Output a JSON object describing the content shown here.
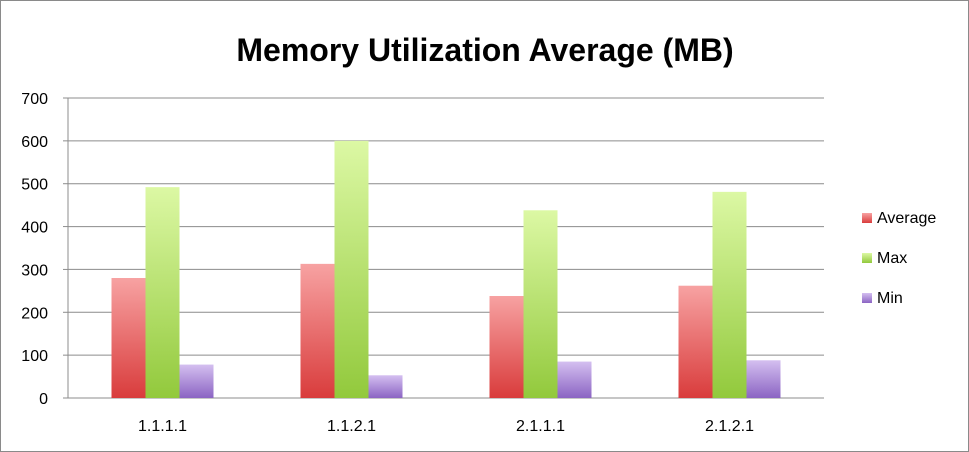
{
  "chart_data": {
    "type": "bar",
    "title": "Memory Utilization Average (MB)",
    "xlabel": "",
    "ylabel": "",
    "categories": [
      "1.1.1.1",
      "1.1.2.1",
      "2.1.1.1",
      "2.1.2.1"
    ],
    "series": [
      {
        "name": "Average",
        "values": [
          280,
          313,
          238,
          262
        ]
      },
      {
        "name": "Max",
        "values": [
          492,
          600,
          438,
          481
        ]
      },
      {
        "name": "Min",
        "values": [
          78,
          53,
          85,
          88
        ]
      }
    ],
    "ylim": [
      0,
      700
    ],
    "yticks": [
      0,
      100,
      200,
      300,
      400,
      500,
      600,
      700
    ],
    "ytick_labels": [
      "0",
      "100",
      "200",
      "300",
      "400",
      "500",
      "600",
      "700"
    ],
    "grid": true,
    "legend_position": "right",
    "colors": {
      "Average": {
        "light": "#f7a2a2",
        "dark": "#d93c3c"
      },
      "Max": {
        "light": "#dcf8a4",
        "dark": "#92c93c"
      },
      "Min": {
        "light": "#d4bff0",
        "dark": "#8b64c3"
      },
      "grid": "#8c8c8c",
      "axis": "#8c8c8c"
    }
  }
}
